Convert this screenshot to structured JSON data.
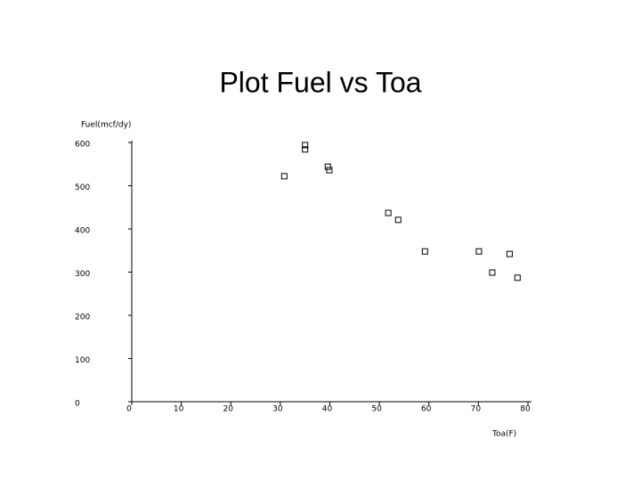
{
  "chart_data": {
    "type": "scatter",
    "title": "Plot Fuel vs Toa",
    "xlabel": "Toa(F)",
    "ylabel": "Fuel(mcf/dy)",
    "x": [
      35,
      35,
      30.8,
      39.6,
      39.9,
      51.8,
      53.8,
      59.2,
      70.1,
      76.3,
      72.8,
      77.9
    ],
    "values": [
      594,
      584,
      522,
      544,
      536,
      437,
      421,
      348,
      348,
      342,
      299,
      287
    ],
    "color": "#000000",
    "xlim": [
      0,
      80
    ],
    "xticks": [
      0,
      10,
      20,
      30,
      40,
      50,
      60,
      70,
      80
    ],
    "ylim": [
      0,
      600
    ],
    "yticks": [
      0,
      100,
      200,
      300,
      400,
      500,
      600
    ]
  }
}
